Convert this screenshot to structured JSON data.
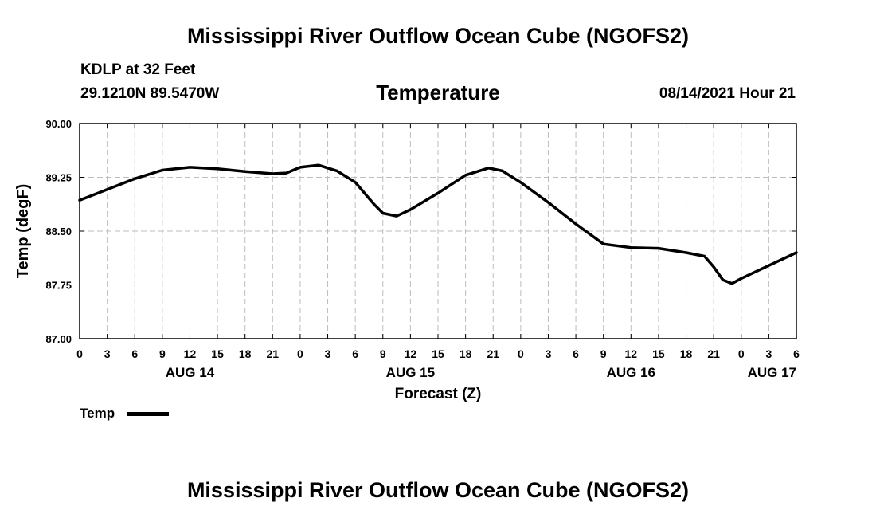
{
  "header": {
    "title_top": "Mississippi River Outflow Ocean Cube (NGOFS2)",
    "station": "KDLP at 32 Feet",
    "coords": "29.1210N  89.5470W",
    "subtitle": "Temperature",
    "datetime": "08/14/2021 Hour 21"
  },
  "footer": {
    "title_bottom": "Mississippi River Outflow Ocean Cube (NGOFS2)"
  },
  "legend": {
    "label": "Temp"
  },
  "chart_data": {
    "type": "line",
    "title": "Temperature",
    "xlabel": "Forecast (Z)",
    "ylabel": "Temp (degF)",
    "ylim": [
      87.0,
      90.0
    ],
    "xlim": [
      0,
      78
    ],
    "grid": true,
    "yticks": [
      87.0,
      87.75,
      88.5,
      89.25,
      90.0
    ],
    "ytick_labels": [
      "87.00",
      "87.75",
      "88.50",
      "89.25",
      "90.00"
    ],
    "xticks": [
      0,
      3,
      6,
      9,
      12,
      15,
      18,
      21,
      24,
      27,
      30,
      33,
      36,
      39,
      42,
      45,
      48,
      51,
      54,
      57,
      60,
      63,
      66,
      69,
      72,
      75,
      78
    ],
    "xtick_labels": [
      "0",
      "3",
      "6",
      "9",
      "12",
      "15",
      "18",
      "21",
      "0",
      "3",
      "6",
      "9",
      "12",
      "15",
      "18",
      "21",
      "0",
      "3",
      "6",
      "9",
      "12",
      "15",
      "18",
      "21",
      "0",
      "3",
      "6"
    ],
    "date_labels": [
      {
        "x": 12,
        "label": "AUG 14"
      },
      {
        "x": 36,
        "label": "AUG 15"
      },
      {
        "x": 60,
        "label": "AUG 16"
      },
      {
        "x": 78,
        "label": "AUG 17"
      }
    ],
    "series": [
      {
        "name": "Temp",
        "color": "#000000",
        "x": [
          0,
          3,
          6,
          9,
          12,
          15,
          18,
          21,
          22.5,
          24,
          26,
          28,
          30,
          32,
          33,
          34.5,
          36,
          39,
          42,
          44.5,
          46,
          48,
          51,
          54,
          57,
          60,
          63,
          66,
          68,
          69,
          70,
          71,
          72,
          75,
          78
        ],
        "y": [
          88.93,
          89.08,
          89.23,
          89.35,
          89.39,
          89.37,
          89.33,
          89.3,
          89.31,
          89.39,
          89.42,
          89.34,
          89.18,
          88.88,
          88.75,
          88.71,
          88.8,
          89.03,
          89.28,
          89.38,
          89.34,
          89.18,
          88.9,
          88.6,
          88.32,
          88.27,
          88.26,
          88.2,
          88.15,
          88.0,
          87.82,
          87.77,
          87.84,
          88.02,
          88.2
        ]
      }
    ]
  }
}
